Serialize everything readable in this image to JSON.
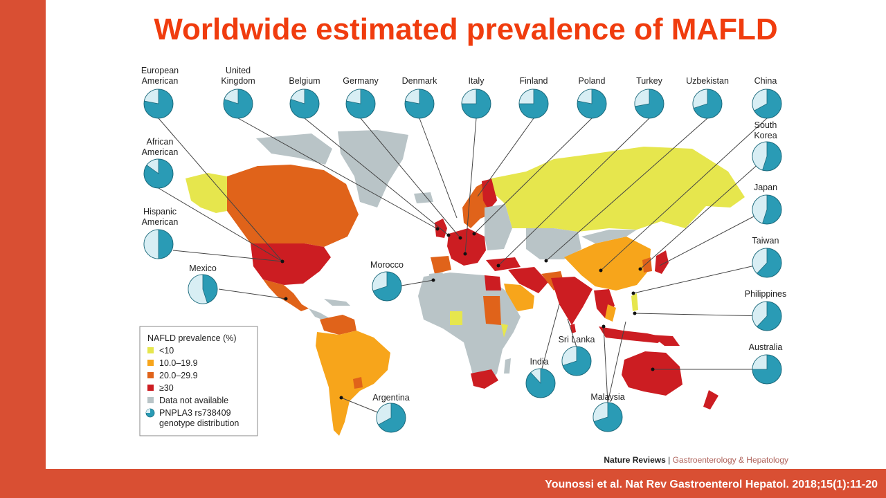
{
  "title": "Worldwide estimated prevalence of MAFLD",
  "citation": "Younossi et al. Nat Rev Gastroenterol Hepatol. 2018;15(1):11-20",
  "source": {
    "journal_bold": "Nature Reviews",
    "separator": " | ",
    "journal_section": "Gastroenterology & Hepatology"
  },
  "colors": {
    "brand_bar": "#d94f33",
    "title": "#f03c0e",
    "lt10": "#e6e64d",
    "c10_19": "#f7a51b",
    "c20_29": "#e0631a",
    "ge30": "#cc1d22",
    "na": "#b9c4c7",
    "pie": "#2a9bb5",
    "pie_light": "#d8eef4"
  },
  "legend": {
    "title": "NAFLD prevalence (%)",
    "items": [
      {
        "label": "<10",
        "color": "#e6e64d"
      },
      {
        "label": "10.0–19.9",
        "color": "#f7a51b"
      },
      {
        "label": "20.0–29.9",
        "color": "#e0631a"
      },
      {
        "label": "≥30",
        "color": "#cc1d22"
      },
      {
        "label": "Data not available",
        "color": "#b9c4c7"
      }
    ],
    "pie_label_1": "PNPLA3 rs738409",
    "pie_label_2": "genotype distribution"
  },
  "pies": [
    {
      "name": "european-american",
      "line1": "European",
      "line2": "American",
      "slice": 0.22
    },
    {
      "name": "united-kingdom",
      "line1": "United",
      "line2": "Kingdom",
      "slice": 0.2
    },
    {
      "name": "belgium",
      "line1": "Belgium",
      "line2": "",
      "slice": 0.2
    },
    {
      "name": "germany",
      "line1": "Germany",
      "line2": "",
      "slice": 0.22
    },
    {
      "name": "denmark",
      "line1": "Denmark",
      "line2": "",
      "slice": 0.22
    },
    {
      "name": "italy",
      "line1": "Italy",
      "line2": "",
      "slice": 0.25
    },
    {
      "name": "finland",
      "line1": "Finland",
      "line2": "",
      "slice": 0.25
    },
    {
      "name": "poland",
      "line1": "Poland",
      "line2": "",
      "slice": 0.22
    },
    {
      "name": "turkey",
      "line1": "Turkey",
      "line2": "",
      "slice": 0.28
    },
    {
      "name": "uzbekistan",
      "line1": "Uzbekistan",
      "line2": "",
      "slice": 0.3
    },
    {
      "name": "china",
      "line1": "China",
      "line2": "",
      "slice": 0.33
    },
    {
      "name": "african-american",
      "line1": "African",
      "line2": "American",
      "slice": 0.15
    },
    {
      "name": "south-korea",
      "line1": "South",
      "line2": "Korea",
      "slice": 0.45
    },
    {
      "name": "hispanic-american",
      "line1": "Hispanic",
      "line2": "American",
      "slice": 0.5
    },
    {
      "name": "japan",
      "line1": "Japan",
      "line2": "",
      "slice": 0.45
    },
    {
      "name": "mexico",
      "line1": "Mexico",
      "line2": "",
      "slice": 0.55
    },
    {
      "name": "taiwan",
      "line1": "Taiwan",
      "line2": "",
      "slice": 0.38
    },
    {
      "name": "morocco",
      "line1": "Morocco",
      "line2": "",
      "slice": 0.3
    },
    {
      "name": "philippines",
      "line1": "Philippines",
      "line2": "",
      "slice": 0.38
    },
    {
      "name": "india",
      "line1": "India",
      "line2": "",
      "slice": 0.12
    },
    {
      "name": "sri-lanka",
      "line1": "Sri Lanka",
      "line2": "",
      "slice": 0.3
    },
    {
      "name": "australia",
      "line1": "Australia",
      "line2": "",
      "slice": 0.25
    },
    {
      "name": "argentina",
      "line1": "Argentina",
      "line2": "",
      "slice": 0.33
    },
    {
      "name": "malaysia",
      "line1": "Malaysia",
      "line2": "",
      "slice": 0.3
    }
  ]
}
